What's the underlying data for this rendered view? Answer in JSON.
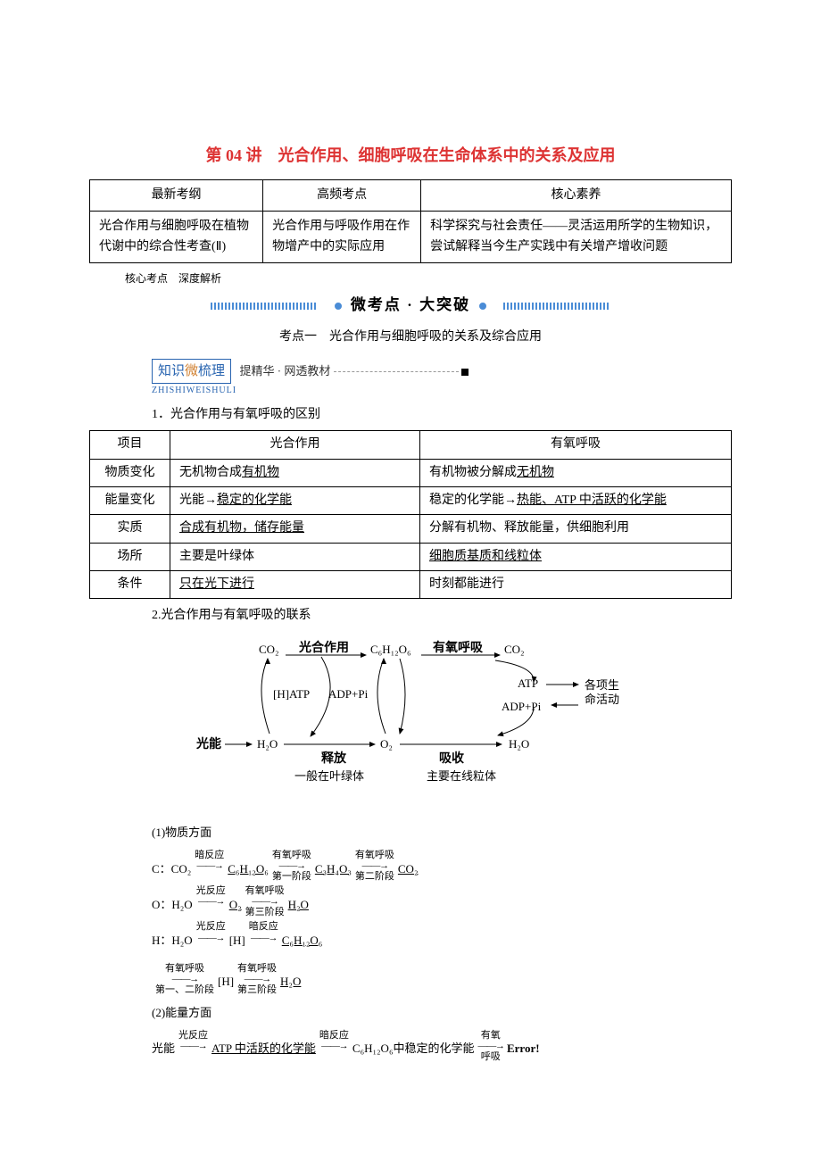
{
  "title": "第 04 讲　光合作用、细胞呼吸在生命体系中的关系及应用",
  "topTable": {
    "headers": [
      "最新考纲",
      "高频考点",
      "核心素养"
    ],
    "row": [
      "光合作用与细胞呼吸在植物代谢中的综合性考查(Ⅱ)",
      "光合作用与呼吸作用在作物增产中的实际应用",
      "科学探究与社会责任——灵活运用所学的生物知识，尝试解释当今生产实践中有关增产增收问题"
    ]
  },
  "annoSmall": "核心考点　深度解析",
  "bannerText": "微考点 · 大突破",
  "sectionTitle": "考点一　光合作用与细胞呼吸的关系及综合应用",
  "knowledgeBox": {
    "main": "知识",
    "wei": "微",
    "main2": "梳理",
    "pinyin": "ZHISHIWEISHULI",
    "sub": "提精华 · 网透教材"
  },
  "subheading1": "1．光合作用与有氧呼吸的区别",
  "compTable": {
    "header": [
      "项目",
      "光合作用",
      "有氧呼吸"
    ],
    "rows": [
      [
        "物质变化",
        "无机物合成<u>有机物</u>",
        "有机物被分解成<u>无机物</u>"
      ],
      [
        "能量变化",
        "光能→<u>稳定的化学能</u>",
        "稳定的化学能→<u>热能、ATP 中活跃的化学能</u>"
      ],
      [
        "实质",
        "<u>合成有机物，储存能量</u>",
        "分解有机物、释放能量，供细胞利用"
      ],
      [
        "场所",
        "主要是叶绿体",
        "<u>细胞质基质和线粒体</u>"
      ],
      [
        "条件",
        "<u>只在光下进行</u>",
        "时刻都能进行"
      ]
    ]
  },
  "subheading2": "2.光合作用与有氧呼吸的联系",
  "diagram": {
    "labels": {
      "photosynthesis": "光合作用",
      "aerobic": "有氧呼吸",
      "co2_l": "CO₂",
      "co2_r": "CO₂",
      "glucose": "C₆H₁₂O₆",
      "h_atp": "[H]ATP",
      "adp_pi_l": "ADP+Pi",
      "atp": "ATP",
      "adp_pi_r": "ADP+Pi",
      "activities": "各项生命活动",
      "light": "光能",
      "h2o_l": "H₂O",
      "o2": "O₂",
      "h2o_r": "H₂O",
      "release": "释放",
      "absorb": "吸收",
      "chloroplast": "一般在叶绿体",
      "mito": "主要在线粒体"
    },
    "colors": {
      "stroke": "#000000",
      "text": "#000000",
      "bg": "#ffffff"
    },
    "fontSize": 13,
    "boldSize": 14
  },
  "materialHeading": "(1)物质方面",
  "reactions": {
    "c": {
      "prefix": "C：",
      "steps": [
        {
          "species": "CO₂",
          "top": "暗反应",
          "bottom": "",
          "uline": false
        },
        {
          "species": "C₆H₁₂O₆",
          "top": "有氧呼吸",
          "bottom": "第一阶段",
          "uline": true
        },
        {
          "species": "C₃H₄O₃",
          "top": "有氧呼吸",
          "bottom": "第二阶段",
          "uline": true
        },
        {
          "species": "CO₂",
          "uline": true
        }
      ]
    },
    "o": {
      "prefix": "O：",
      "steps": [
        {
          "species": "H₂O",
          "top": "光反应",
          "bottom": "",
          "uline": false
        },
        {
          "species": "O₂",
          "top": "有氧呼吸",
          "bottom": "第三阶段",
          "uline": true
        },
        {
          "species": "H₂O",
          "uline": true
        }
      ]
    },
    "h1": {
      "prefix": "H：",
      "steps": [
        {
          "species": "H₂O",
          "top": "光反应",
          "bottom": "",
          "uline": false
        },
        {
          "species": "[H]",
          "top": "暗反应",
          "bottom": "",
          "uline": false
        },
        {
          "species": "C₆H₁₂O₆",
          "uline": true
        }
      ]
    },
    "h2": {
      "prefix": "",
      "steps": [
        {
          "species": "",
          "top": "有氧呼吸",
          "bottom": "第一、二阶段",
          "uline": false,
          "skipSpecies": true
        },
        {
          "species": "[H]",
          "top": "有氧呼吸",
          "bottom": "第三阶段",
          "uline": false
        },
        {
          "species": "H₂O",
          "uline": true
        }
      ]
    }
  },
  "energyHeading": "(2)能量方面",
  "energyLine": {
    "steps": [
      {
        "species": "光能",
        "top": "光反应",
        "bottom": ""
      },
      {
        "species": "ATP 中活跃的化学能",
        "uline": true,
        "top": "暗反应",
        "bottom": ""
      },
      {
        "species": "C₆H₁₂O₆中稳定的化学能",
        "top": "有氧",
        "bottom": "呼吸"
      },
      {
        "species": "Error!",
        "bold": true
      }
    ]
  }
}
